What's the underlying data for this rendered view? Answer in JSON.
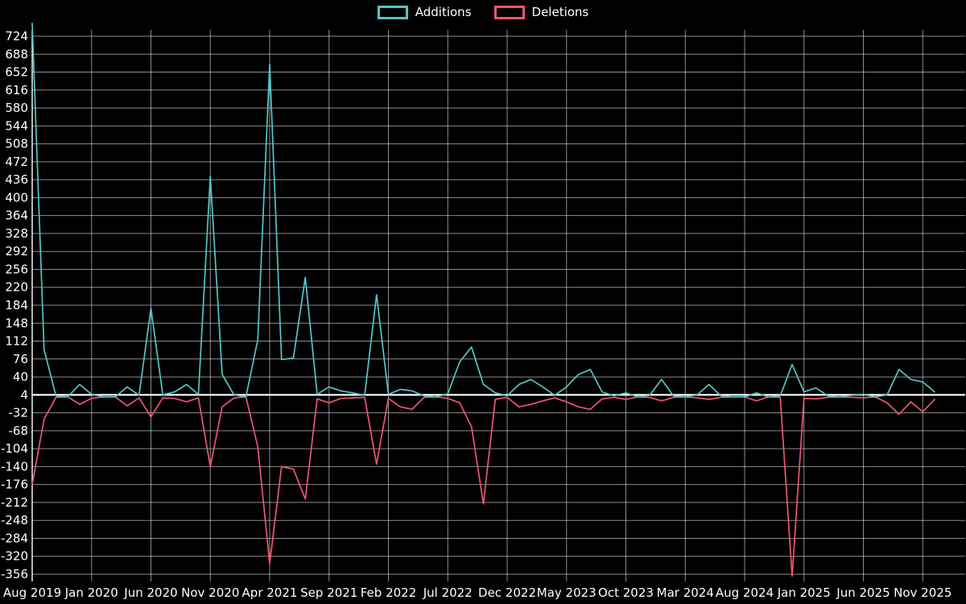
{
  "page": {
    "background": "#000000"
  },
  "legend": {
    "items": [
      {
        "label": "Additions",
        "color": "#54c6c5"
      },
      {
        "label": "Deletions",
        "color": "#ef5670"
      }
    ]
  },
  "chart_data": {
    "type": "line",
    "title": "",
    "legend_position": "top-center",
    "grid": true,
    "background": "#000000",
    "grid_color": "#ffffff",
    "text_color": "#ffffff",
    "baseline_value": 4,
    "ylim": [
      -368,
      737
    ],
    "y_ticks": [
      724,
      688,
      652,
      616,
      580,
      544,
      508,
      472,
      436,
      400,
      364,
      328,
      292,
      256,
      220,
      184,
      148,
      112,
      76,
      40,
      4,
      -32,
      -68,
      -104,
      -140,
      -176,
      -212,
      -248,
      -284,
      -320,
      -356
    ],
    "x_tick_labels": [
      "Aug 2019",
      "Jan 2020",
      "Jun 2020",
      "Nov 2020",
      "Apr 2021",
      "Sep 2021",
      "Feb 2022",
      "Jul 2022",
      "Dec 2022",
      "May 2023",
      "Oct 2023",
      "Mar 2024",
      "Aug 2024",
      "Jan 2025",
      "Jun 2025",
      "Nov 2025"
    ],
    "x_tick_month_indices": [
      0,
      5,
      10,
      15,
      20,
      25,
      30,
      35,
      40,
      45,
      50,
      55,
      60,
      65,
      70,
      75
    ],
    "x": [
      "2019-08",
      "2019-09",
      "2019-10",
      "2019-11",
      "2019-12",
      "2020-01",
      "2020-02",
      "2020-03",
      "2020-04",
      "2020-05",
      "2020-06",
      "2020-07",
      "2020-08",
      "2020-09",
      "2020-10",
      "2020-11",
      "2020-12",
      "2021-01",
      "2021-02",
      "2021-03",
      "2021-04",
      "2021-05",
      "2021-06",
      "2021-07",
      "2021-08",
      "2021-09",
      "2021-10",
      "2021-11",
      "2021-12",
      "2022-01",
      "2022-02",
      "2022-03",
      "2022-04",
      "2022-05",
      "2022-06",
      "2022-07",
      "2022-08",
      "2022-09",
      "2022-10",
      "2022-11",
      "2022-12",
      "2023-01",
      "2023-02",
      "2023-03",
      "2023-04",
      "2023-05",
      "2023-06",
      "2023-07",
      "2023-08",
      "2023-09",
      "2023-10",
      "2023-11",
      "2023-12",
      "2024-01",
      "2024-02",
      "2024-03",
      "2024-04",
      "2024-05",
      "2024-06",
      "2024-07",
      "2024-08",
      "2024-09",
      "2024-10",
      "2024-11",
      "2024-12",
      "2025-01",
      "2025-02",
      "2025-03",
      "2025-04",
      "2025-05",
      "2025-06",
      "2025-07",
      "2025-08",
      "2025-09",
      "2025-10",
      "2025-11",
      "2025-12"
    ],
    "series": [
      {
        "name": "Additions",
        "color": "#54c6c5",
        "values": [
          750,
          95,
          2,
          0,
          25,
          5,
          0,
          0,
          20,
          3,
          178,
          4,
          10,
          25,
          5,
          443,
          45,
          4,
          0,
          115,
          668,
          75,
          78,
          240,
          5,
          20,
          12,
          8,
          3,
          205,
          5,
          15,
          12,
          2,
          0,
          6,
          70,
          100,
          25,
          8,
          2,
          25,
          35,
          20,
          3,
          20,
          45,
          55,
          10,
          2,
          8,
          0,
          3,
          35,
          2,
          0,
          4,
          25,
          2,
          0,
          0,
          8,
          0,
          2,
          65,
          10,
          18,
          2,
          0,
          3,
          5,
          0,
          4,
          55,
          35,
          30,
          10
        ]
      },
      {
        "name": "Deletions",
        "color": "#ef5670",
        "values": [
          -176,
          -45,
          -1,
          0,
          -15,
          -3,
          0,
          0,
          -18,
          -2,
          -40,
          -2,
          -3,
          -10,
          -2,
          -140,
          -20,
          -2,
          0,
          -100,
          -335,
          -140,
          -145,
          -205,
          -4,
          -12,
          -3,
          -2,
          -1,
          -135,
          -3,
          -20,
          -25,
          -1,
          0,
          -3,
          -12,
          -60,
          -215,
          -5,
          -1,
          -20,
          -15,
          -8,
          -2,
          -10,
          -20,
          -25,
          -4,
          -1,
          -5,
          0,
          -1,
          -8,
          -1,
          0,
          -2,
          -5,
          -1,
          0,
          0,
          -8,
          0,
          -1,
          -360,
          -3,
          -4,
          -1,
          0,
          -1,
          -2,
          0,
          -12,
          -35,
          -10,
          -30,
          -5
        ]
      }
    ]
  }
}
